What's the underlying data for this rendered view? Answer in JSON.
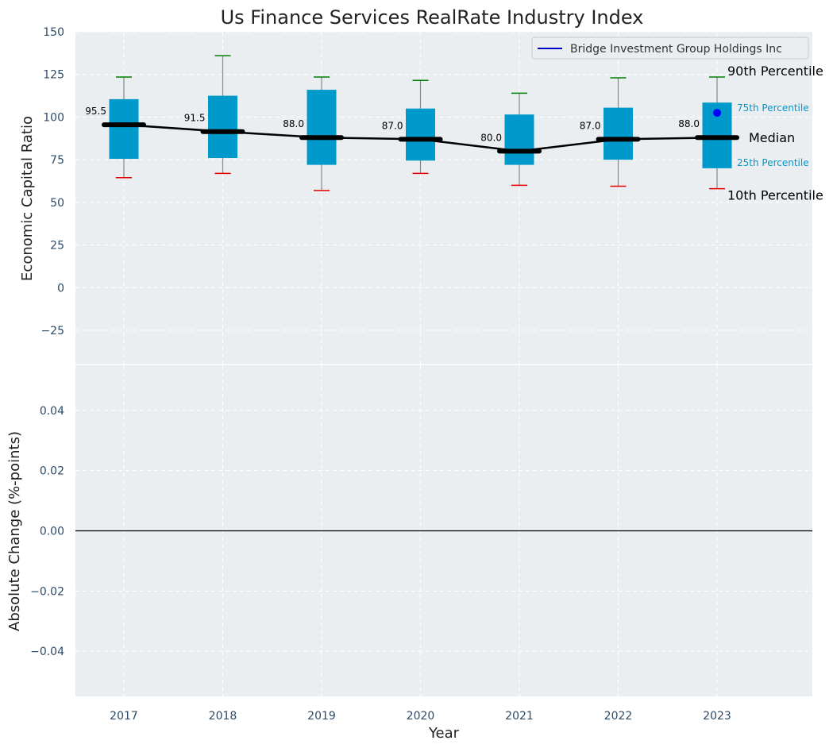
{
  "chart_data": [
    {
      "type": "box",
      "title": "Us Finance Services RealRate Industry Index",
      "ylabel": "Economic Capital Ratio",
      "ylim": [
        -45,
        150
      ],
      "yticks": [
        150,
        125,
        100,
        75,
        50,
        25,
        0,
        -25
      ],
      "ytick_labels": [
        "150",
        "125",
        "100",
        "75",
        "50",
        "25",
        "0",
        "−25"
      ],
      "categories": [
        "2017",
        "2018",
        "2019",
        "2020",
        "2021",
        "2022",
        "2023"
      ],
      "p10": [
        64.5,
        67,
        57,
        67,
        60,
        59.5,
        58
      ],
      "p25": [
        75.5,
        76,
        72,
        74.5,
        72,
        75,
        70
      ],
      "median": [
        95.5,
        91.5,
        88.0,
        87.0,
        80.0,
        87.0,
        88.0
      ],
      "median_labels": [
        "95.5",
        "91.5",
        "88.0",
        "87.0",
        "80.0",
        "87.0",
        "88.0"
      ],
      "p75": [
        110.5,
        112.5,
        116,
        105,
        101.5,
        105.5,
        108.5
      ],
      "p90": [
        123.5,
        136,
        123.5,
        121.5,
        114,
        123,
        123.5
      ],
      "company_point": {
        "x": "2023",
        "y": 102.5
      },
      "legend": {
        "label": "Bridge Investment Group Holdings Inc",
        "position": "top-right",
        "color": "#0000cc"
      },
      "annotations": {
        "p90": "90th Percentile",
        "p75": "75th Percentile",
        "median": "Median",
        "p25": "25th Percentile",
        "p10": "10th Percentile"
      },
      "colors": {
        "box": "#0099cc",
        "p90_cap": "#008000",
        "p10_cap": "#e60000",
        "median": "#000000",
        "background": "#eaeef0"
      },
      "grid": true
    },
    {
      "type": "line",
      "ylabel": "Absolute Change (%-points)",
      "xlabel": "Year",
      "ylim": [
        -0.055,
        0.055
      ],
      "yticks": [
        0.04,
        0.02,
        0.0,
        -0.02,
        -0.04
      ],
      "ytick_labels": [
        "0.04",
        "0.02",
        "0.00",
        "−0.02",
        "−0.04"
      ],
      "categories": [
        "2017",
        "2018",
        "2019",
        "2020",
        "2021",
        "2022",
        "2023"
      ],
      "zero_line": true,
      "grid": true
    }
  ]
}
